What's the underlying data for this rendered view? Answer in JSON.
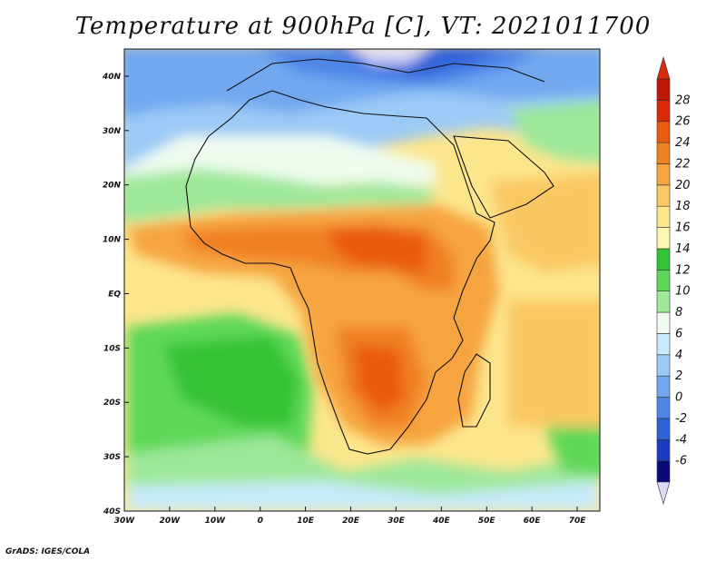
{
  "title": "Temperature at 900hPa [C], VT: 2021011700",
  "credit": "GrADS: IGES/COLA",
  "map": {
    "lon_range": [
      -30,
      75
    ],
    "lat_range": [
      -40,
      45
    ],
    "lon_ticks": [
      "30W",
      "20W",
      "10W",
      "0",
      "10E",
      "20E",
      "30E",
      "40E",
      "50E",
      "60E",
      "70E"
    ],
    "lat_ticks": [
      "40S",
      "30S",
      "20S",
      "10S",
      "EQ",
      "10N",
      "20N",
      "30N",
      "40N"
    ]
  },
  "colorbar": {
    "labels": [
      "-6",
      "-4",
      "-2",
      "0",
      "2",
      "4",
      "6",
      "8",
      "10",
      "12",
      "14",
      "16",
      "18",
      "20",
      "22",
      "24",
      "26",
      "28"
    ],
    "colors": [
      "#0a0a78",
      "#1a3cc0",
      "#2e62d8",
      "#4e86e8",
      "#72a8f0",
      "#9ccaf6",
      "#c8eafa",
      "#f0fcf0",
      "#9ee89a",
      "#5ed85a",
      "#36c236",
      "#fff8b0",
      "#fce68c",
      "#fac864",
      "#f6a440",
      "#f08024",
      "#ea5a10",
      "#d82a08",
      "#c01808"
    ],
    "under_color": "#dcdcf8",
    "over_color": "#d82a08"
  }
}
